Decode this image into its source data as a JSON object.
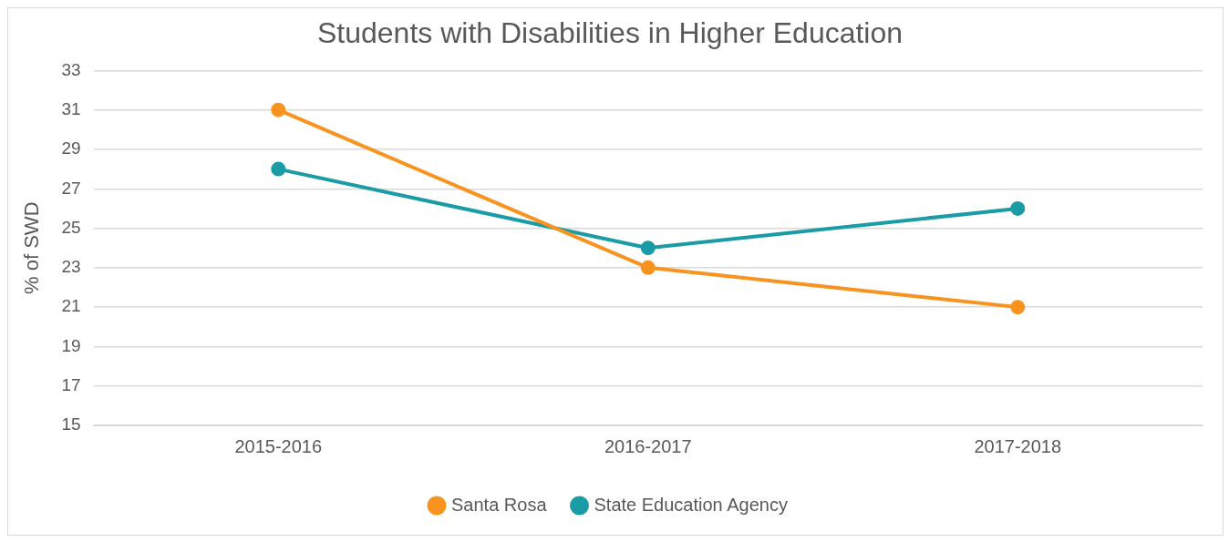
{
  "chart_data": {
    "type": "line",
    "title": "Students with Disabilities in Higher Education",
    "ylabel": "% of SWD",
    "categories": [
      "2015-2016",
      "2016-2017",
      "2017-2018"
    ],
    "series": [
      {
        "name": "Santa Rosa",
        "color": "#f7931e",
        "values": [
          31,
          23,
          21
        ]
      },
      {
        "name": "State Education Agency",
        "color": "#1a9ba5",
        "values": [
          28,
          24,
          26
        ]
      }
    ],
    "ylim": [
      15,
      33
    ],
    "yticks": [
      15,
      17,
      19,
      21,
      23,
      25,
      27,
      29,
      31,
      33
    ],
    "grid": "y",
    "legend": "bottom",
    "marker": "circle",
    "line_style": "solid"
  }
}
